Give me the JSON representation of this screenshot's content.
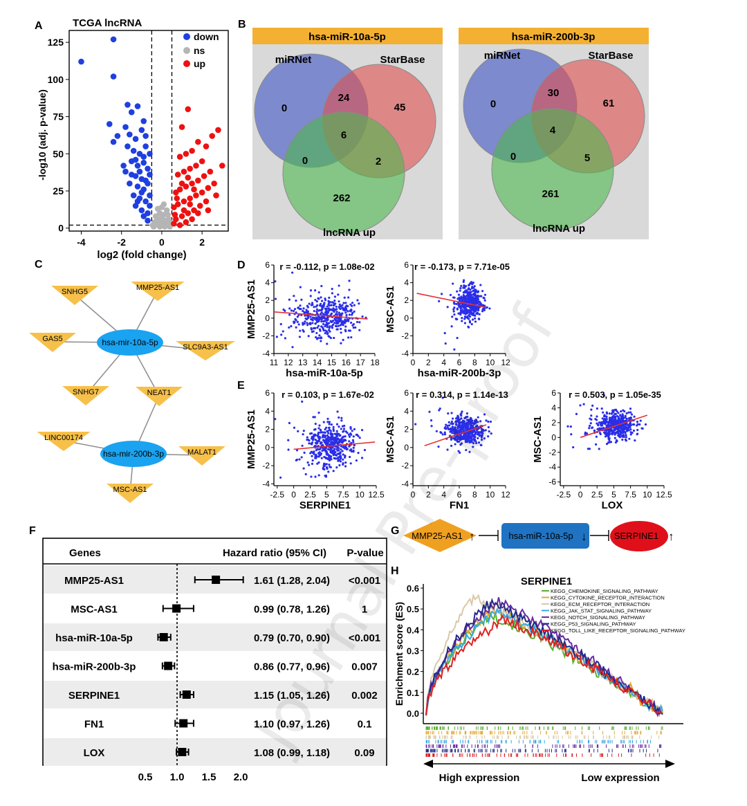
{
  "watermark": "Journal Pre-proof",
  "panel_labels": {
    "A": "A",
    "B": "B",
    "C": "C",
    "D": "D",
    "E": "E",
    "F": "F",
    "G": "G",
    "H": "H"
  },
  "panelA": {
    "chart_data": {
      "type": "scatter",
      "title": "TCGA lncRNA",
      "xlabel": "log2 (fold change)",
      "ylabel": "-log10 (adj. p-value)",
      "xlim": [
        -4.6,
        3.3
      ],
      "ylim": [
        -2,
        133
      ],
      "xticks": [
        "-4",
        "-2",
        "0",
        "2"
      ],
      "yticks": [
        "0",
        "25",
        "50",
        "75",
        "100",
        "125"
      ],
      "thresholds": {
        "x": [
          -0.5,
          0.5
        ],
        "y": 2
      },
      "legend": [
        {
          "name": "down",
          "color": "#1f3fe0"
        },
        {
          "name": "ns",
          "color": "#b5b5b5"
        },
        {
          "name": "up",
          "color": "#ee1111"
        }
      ],
      "series": [
        {
          "name": "down",
          "points": [
            [
              -4,
              112
            ],
            [
              -2.4,
              127
            ],
            [
              -2.4,
              102
            ],
            [
              -2.6,
              70
            ],
            [
              -2.2,
              62
            ],
            [
              -2.4,
              58
            ],
            [
              -1.7,
              83
            ],
            [
              -1.5,
              78
            ],
            [
              -1.2,
              82
            ],
            [
              -0.9,
              72
            ],
            [
              -1.8,
              68
            ],
            [
              -1.6,
              63
            ],
            [
              -1.3,
              60
            ],
            [
              -1.0,
              66
            ],
            [
              -0.8,
              62
            ],
            [
              -1.7,
              55
            ],
            [
              -1.4,
              52
            ],
            [
              -1.1,
              50
            ],
            [
              -0.8,
              55
            ],
            [
              -0.6,
              50
            ],
            [
              -1.5,
              45
            ],
            [
              -1.2,
              42
            ],
            [
              -0.9,
              44
            ],
            [
              -0.7,
              40
            ],
            [
              -1.8,
              38
            ],
            [
              -1.3,
              35
            ],
            [
              -1.0,
              33
            ],
            [
              -0.6,
              36
            ],
            [
              -1.6,
              30
            ],
            [
              -1.2,
              28
            ],
            [
              -0.9,
              26
            ],
            [
              -0.7,
              30
            ],
            [
              -1.4,
              22
            ],
            [
              -1.1,
              20
            ],
            [
              -0.8,
              18
            ],
            [
              -0.6,
              22
            ],
            [
              -1.3,
              15
            ],
            [
              -1.0,
              12
            ],
            [
              -0.7,
              10
            ],
            [
              -0.6,
              15
            ],
            [
              -0.9,
              8
            ],
            [
              -0.7,
              5
            ],
            [
              -1.9,
              42
            ],
            [
              -1.5,
              36
            ],
            [
              -1.1,
              38
            ],
            [
              -0.9,
              48
            ],
            [
              -1.3,
              46
            ],
            [
              -0.8,
              32
            ],
            [
              -1.0,
              24
            ],
            [
              -1.2,
              18
            ]
          ]
        },
        {
          "name": "ns",
          "points": [
            [
              -0.4,
              1
            ],
            [
              -0.3,
              3
            ],
            [
              -0.2,
              6
            ],
            [
              -0.1,
              10
            ],
            [
              0,
              14
            ],
            [
              0.1,
              9
            ],
            [
              0.2,
              5
            ],
            [
              0.3,
              2
            ],
            [
              0.4,
              1
            ],
            [
              -0.3,
              8
            ],
            [
              0.25,
              12
            ],
            [
              -0.15,
              2
            ],
            [
              0.05,
              3
            ],
            [
              0.15,
              1
            ],
            [
              -0.05,
              5
            ],
            [
              0.35,
              6
            ],
            [
              -0.35,
              4
            ],
            [
              0.1,
              16
            ],
            [
              -0.2,
              13
            ],
            [
              0.3,
              9
            ],
            [
              0.0,
              7
            ],
            [
              -0.1,
              1
            ],
            [
              0.2,
              2
            ],
            [
              0.4,
              4
            ],
            [
              -0.45,
              2
            ]
          ]
        },
        {
          "name": "up",
          "points": [
            [
              1.0,
              68
            ],
            [
              1.3,
              80
            ],
            [
              2.8,
              66
            ],
            [
              3.0,
              42
            ],
            [
              2.5,
              62
            ],
            [
              2.2,
              55
            ],
            [
              1.8,
              58
            ],
            [
              1.5,
              52
            ],
            [
              1.2,
              50
            ],
            [
              0.9,
              48
            ],
            [
              2.0,
              45
            ],
            [
              1.7,
              42
            ],
            [
              1.4,
              40
            ],
            [
              1.1,
              38
            ],
            [
              0.8,
              36
            ],
            [
              2.4,
              38
            ],
            [
              2.1,
              35
            ],
            [
              1.8,
              32
            ],
            [
              1.5,
              30
            ],
            [
              1.2,
              28
            ],
            [
              0.9,
              26
            ],
            [
              0.7,
              24
            ],
            [
              2.6,
              30
            ],
            [
              2.3,
              27
            ],
            [
              2.0,
              24
            ],
            [
              1.7,
              22
            ],
            [
              1.4,
              20
            ],
            [
              1.1,
              18
            ],
            [
              0.8,
              16
            ],
            [
              0.6,
              14
            ],
            [
              1.9,
              15
            ],
            [
              1.6,
              12
            ],
            [
              1.3,
              10
            ],
            [
              1.0,
              8
            ],
            [
              0.7,
              6
            ],
            [
              0.6,
              3
            ],
            [
              1.2,
              4
            ],
            [
              0.9,
              2
            ],
            [
              1.5,
              6
            ],
            [
              2.2,
              18
            ],
            [
              2.7,
              22
            ],
            [
              1.0,
              30
            ],
            [
              1.3,
              34
            ],
            [
              1.6,
              26
            ],
            [
              0.75,
              20
            ],
            [
              1.1,
              12
            ],
            [
              0.65,
              9
            ],
            [
              1.8,
              10
            ],
            [
              2.3,
              12
            ],
            [
              1.4,
              16
            ]
          ]
        }
      ]
    }
  },
  "panelB": {
    "venns": [
      {
        "title": "hsa-miR-10a-5p",
        "set_labels": [
          "miRNet",
          "StarBase",
          "lncRNA up"
        ],
        "regions": {
          "a_only": "0",
          "ab": "24",
          "b_only": "45",
          "abc": "6",
          "ac": "0",
          "bc": "2",
          "c_only": "262"
        }
      },
      {
        "title": "hsa-miR-200b-3p",
        "set_labels": [
          "miRNet",
          "StarBase",
          "lncRNA up"
        ],
        "regions": {
          "a_only": "0",
          "ab": "30",
          "b_only": "61",
          "abc": "4",
          "ac": "0",
          "bc": "5",
          "c_only": "261"
        }
      }
    ],
    "colors": {
      "header": "#f4b032",
      "box": "#d9d9d9",
      "a": "#5a6fc8",
      "b": "#e06666",
      "c": "#5cb85c"
    }
  },
  "panelC": {
    "mirna_nodes": [
      "hsa-mir-10a-5p",
      "hsa-mir-200b-3p"
    ],
    "lncrna_nodes": [
      "SNHG5",
      "MMP25-AS1",
      "GAS5",
      "SLC9A3-AS1",
      "SNHG7",
      "NEAT1",
      "LINC00174",
      "MALAT1",
      "MSC-AS1"
    ],
    "edges": [
      [
        "SNHG5",
        "hsa-mir-10a-5p"
      ],
      [
        "MMP25-AS1",
        "hsa-mir-10a-5p"
      ],
      [
        "GAS5",
        "hsa-mir-10a-5p"
      ],
      [
        "SLC9A3-AS1",
        "hsa-mir-10a-5p"
      ],
      [
        "SNHG7",
        "hsa-mir-10a-5p"
      ],
      [
        "NEAT1",
        "hsa-mir-10a-5p"
      ],
      [
        "NEAT1",
        "hsa-mir-200b-3p"
      ],
      [
        "LINC00174",
        "hsa-mir-200b-3p"
      ],
      [
        "MALAT1",
        "hsa-mir-200b-3p"
      ],
      [
        "MSC-AS1",
        "hsa-mir-200b-3p"
      ]
    ],
    "colors": {
      "mirna": "#1aa3f0",
      "lncrna": "#f6c04a"
    }
  },
  "panelD": {
    "chart_data": [
      {
        "type": "scatter",
        "title": "r = -0.112, p = 1.08e-02",
        "xlabel": "hsa-miR-10a-5p",
        "ylabel": "MMP25-AS1",
        "xlim": [
          11,
          18
        ],
        "ylim": [
          -4,
          6
        ],
        "xticks": [
          "11",
          "12",
          "13",
          "14",
          "15",
          "16",
          "17",
          "18"
        ],
        "yticks": [
          "-4",
          "-2",
          "0",
          "2",
          "4",
          "6"
        ],
        "fit": [
          [
            11,
            0.7
          ],
          [
            17.5,
            -0.1
          ]
        ],
        "cloud": {
          "cx": 14.8,
          "cy": 0.3,
          "sx": 1.1,
          "sy": 1.1,
          "n": 430
        }
      },
      {
        "type": "scatter",
        "title": "r = -0.173, p = 7.71e-05",
        "xlabel": "hsa-miR-200b-3p",
        "ylabel": "MSC-AS1",
        "xlim": [
          0,
          12
        ],
        "ylim": [
          -4,
          6
        ],
        "xticks": [
          "0",
          "2",
          "4",
          "6",
          "8",
          "10",
          "12"
        ],
        "yticks": [
          "-4",
          "-2",
          "0",
          "2",
          "4",
          "6"
        ],
        "fit": [
          [
            0.5,
            2.8
          ],
          [
            9.5,
            1.2
          ]
        ],
        "cloud": {
          "cx": 7.4,
          "cy": 1.7,
          "sx": 0.8,
          "sy": 0.9,
          "n": 430
        }
      }
    ]
  },
  "panelE": {
    "chart_data": [
      {
        "type": "scatter",
        "title": "r = 0.103, p = 1.67e-02",
        "xlabel": "SERPINE1",
        "ylabel": "MMP25-AS1",
        "xlim": [
          -3,
          12.5
        ],
        "ylim": [
          -4.2,
          6
        ],
        "xticks": [
          "-2.5",
          "0",
          "2.5",
          "5",
          "7.5",
          "10",
          "12.5"
        ],
        "yticks": [
          "-4",
          "-2",
          "0",
          "2",
          "4",
          "6"
        ],
        "fit": [
          [
            0,
            -0.2
          ],
          [
            12.3,
            0.6
          ]
        ],
        "cloud": {
          "cx": 5.5,
          "cy": 0.3,
          "sx": 2.0,
          "sy": 1.2,
          "n": 450
        }
      },
      {
        "type": "scatter",
        "title": "r = 0.314, p = 1.14e-13",
        "xlabel": "FN1",
        "ylabel": "MSC-AS1",
        "xlim": [
          0,
          12
        ],
        "ylim": [
          -4.2,
          6
        ],
        "xticks": [
          "0",
          "2",
          "4",
          "6",
          "8",
          "10",
          "12"
        ],
        "yticks": [
          "-4",
          "-2",
          "0",
          "2",
          "4",
          "6"
        ],
        "fit": [
          [
            1.5,
            0.2
          ],
          [
            9.5,
            2.5
          ]
        ],
        "cloud": {
          "cx": 7.0,
          "cy": 1.8,
          "sx": 1.2,
          "sy": 0.8,
          "n": 450
        }
      },
      {
        "type": "scatter",
        "title": "r = 0.503, p = 1.05e-35",
        "xlabel": "LOX",
        "ylabel": "MSC-AS1",
        "xlim": [
          -3,
          12.5
        ],
        "ylim": [
          -6.5,
          6
        ],
        "xticks": [
          "-2.5",
          "0",
          "2.5",
          "5",
          "7.5",
          "10",
          "12.5"
        ],
        "yticks": [
          "-6",
          "-4",
          "-2",
          "0",
          "2",
          "4",
          "6"
        ],
        "fit": [
          [
            0,
            0
          ],
          [
            10,
            3
          ]
        ],
        "cloud": {
          "cx": 5.3,
          "cy": 1.7,
          "sx": 1.6,
          "sy": 0.9,
          "n": 450
        }
      }
    ]
  },
  "panelF": {
    "header": {
      "genes": "Genes",
      "hr": "Hazard ratio (95% CI)",
      "p": "P-value"
    },
    "chart_data": {
      "type": "forest",
      "xticks": [
        "0.5",
        "1.0",
        "1.5",
        "2.0"
      ],
      "xlim": [
        0.5,
        2.0
      ],
      "reference": 1.0,
      "rows": [
        {
          "gene": "MMP25-AS1",
          "hr": 1.61,
          "lo": 1.28,
          "hi": 2.04,
          "text": "1.61 (1.28, 2.04)",
          "p": "<0.001"
        },
        {
          "gene": "MSC-AS1",
          "hr": 0.99,
          "lo": 0.78,
          "hi": 1.26,
          "text": "0.99 (0.78, 1.26)",
          "p": "1"
        },
        {
          "gene": "hsa-miR-10a-5p",
          "hr": 0.79,
          "lo": 0.7,
          "hi": 0.9,
          "text": "0.79 (0.70, 0.90)",
          "p": "<0.001"
        },
        {
          "gene": "hsa-miR-200b-3p",
          "hr": 0.86,
          "lo": 0.77,
          "hi": 0.96,
          "text": "0.86 (0.77, 0.96)",
          "p": "0.007"
        },
        {
          "gene": "SERPINE1",
          "hr": 1.15,
          "lo": 1.05,
          "hi": 1.26,
          "text": "1.15 (1.05, 1.26)",
          "p": "0.002"
        },
        {
          "gene": "FN1",
          "hr": 1.1,
          "lo": 0.97,
          "hi": 1.26,
          "text": "1.10 (0.97, 1.26)",
          "p": "0.1"
        },
        {
          "gene": "LOX",
          "hr": 1.08,
          "lo": 0.99,
          "hi": 1.18,
          "text": "1.08 (0.99, 1.18)",
          "p": "0.09"
        }
      ]
    }
  },
  "panelG": {
    "nodes": [
      {
        "label": "MMP25-AS1",
        "arrow": "↑",
        "color": "#f0a020"
      },
      {
        "label": "hsa-miR-10a-5p",
        "arrow": "↓",
        "color": "#1f73c2"
      },
      {
        "label": "SERPINE1",
        "arrow": "↑",
        "color": "#e0101a"
      }
    ]
  },
  "panelH": {
    "chart_data": {
      "type": "line",
      "title": "SERPINE1",
      "ylabel": "Enrichment score (ES)",
      "ylim": [
        -0.05,
        0.62
      ],
      "yticks": [
        "0.0",
        "0.1",
        "0.2",
        "0.3",
        "0.4",
        "0.5",
        "0.6"
      ],
      "bottom_left": "High expression",
      "bottom_right": "Low expression",
      "series": [
        {
          "name": "KEGG_CHEMOKINE_SIGNALING_PATHWAY",
          "color": "#58b030",
          "peak": 0.47,
          "peak_at": 0.27
        },
        {
          "name": "KEGG_CYTOKINE_RECEPTOR_INTERACTION",
          "color": "#e3a830",
          "peak": 0.5,
          "peak_at": 0.28
        },
        {
          "name": "KEGG_ECM_RECEPTOR_INTERACTION",
          "color": "#d8c8a8",
          "peak": 0.55,
          "peak_at": 0.2
        },
        {
          "name": "KEGG_JAK_STAT_SIGNALING_PATHWAY",
          "color": "#38a8e0",
          "peak": 0.49,
          "peak_at": 0.3
        },
        {
          "name": "KEGG_NOTCH_SIGNALING_PATHWAY",
          "color": "#6a2aa0",
          "peak": 0.54,
          "peak_at": 0.3
        },
        {
          "name": "KEGG_P53_SIGNALING_PATHWAY",
          "color": "#202a88",
          "peak": 0.53,
          "peak_at": 0.27
        },
        {
          "name": "KEGG_TOLL_LIKE_RECEPTOR_SIGNALING_PATHWAY",
          "color": "#dd2222",
          "peak": 0.45,
          "peak_at": 0.33
        }
      ]
    }
  }
}
